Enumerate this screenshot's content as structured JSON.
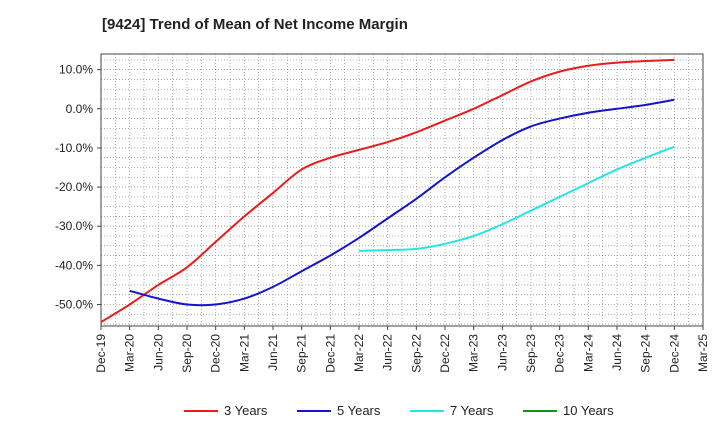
{
  "chart_data": {
    "type": "line",
    "title": "[9424]  Trend of Mean of Net Income Margin",
    "xlabel": "",
    "ylabel": "",
    "x_ticks": [
      "Dec-19",
      "Mar-20",
      "Jun-20",
      "Sep-20",
      "Dec-20",
      "Mar-21",
      "Jun-21",
      "Sep-21",
      "Dec-21",
      "Mar-22",
      "Jun-22",
      "Sep-22",
      "Dec-22",
      "Mar-23",
      "Jun-23",
      "Sep-23",
      "Dec-23",
      "Mar-24",
      "Jun-24",
      "Sep-24",
      "Dec-24",
      "Mar-25"
    ],
    "y_ticks": [
      "10.0%",
      "0.0%",
      "-10.0%",
      "-20.0%",
      "-30.0%",
      "-40.0%",
      "-50.0%"
    ],
    "y_tick_values": [
      10,
      0,
      -10,
      -20,
      -30,
      -40,
      -50
    ],
    "ylim": [
      -55.5,
      14
    ],
    "grid": true,
    "legend_position": "bottom",
    "series": [
      {
        "name": "3 Years",
        "color": "#e81c1c",
        "x_index": [
          0,
          1,
          2,
          3,
          4,
          5,
          6,
          7,
          8,
          9,
          10,
          11,
          12,
          13,
          14,
          15,
          16,
          17,
          18,
          19,
          20
        ],
        "values": [
          -54.5,
          -50.0,
          -45.0,
          -40.5,
          -34.0,
          -27.5,
          -21.5,
          -15.5,
          -12.5,
          -10.5,
          -8.5,
          -6.0,
          -3.0,
          0.0,
          3.5,
          7.0,
          9.5,
          11.0,
          11.8,
          12.2,
          12.5
        ]
      },
      {
        "name": "5 Years",
        "color": "#1414c8",
        "x_index": [
          1,
          2,
          3,
          4,
          5,
          6,
          7,
          8,
          9,
          10,
          11,
          12,
          13,
          14,
          15,
          16,
          17,
          18,
          19,
          20
        ],
        "values": [
          -46.5,
          -48.5,
          -50.0,
          -50.0,
          -48.5,
          -45.5,
          -41.5,
          -37.5,
          -33.0,
          -28.0,
          -23.0,
          -17.5,
          -12.5,
          -8.0,
          -4.5,
          -2.5,
          -1.0,
          0.0,
          1.0,
          2.3
        ]
      },
      {
        "name": "7 Years",
        "color": "#22e6e6",
        "x_index": [
          9,
          10,
          11,
          12,
          13,
          14,
          15,
          16,
          17,
          18,
          19,
          20
        ],
        "values": [
          -36.3,
          -36.1,
          -35.8,
          -34.5,
          -32.5,
          -29.5,
          -26.0,
          -22.5,
          -19.0,
          -15.5,
          -12.5,
          -9.7
        ]
      },
      {
        "name": "10 Years",
        "color": "#1a8c1a",
        "x_index": [],
        "values": []
      }
    ]
  }
}
